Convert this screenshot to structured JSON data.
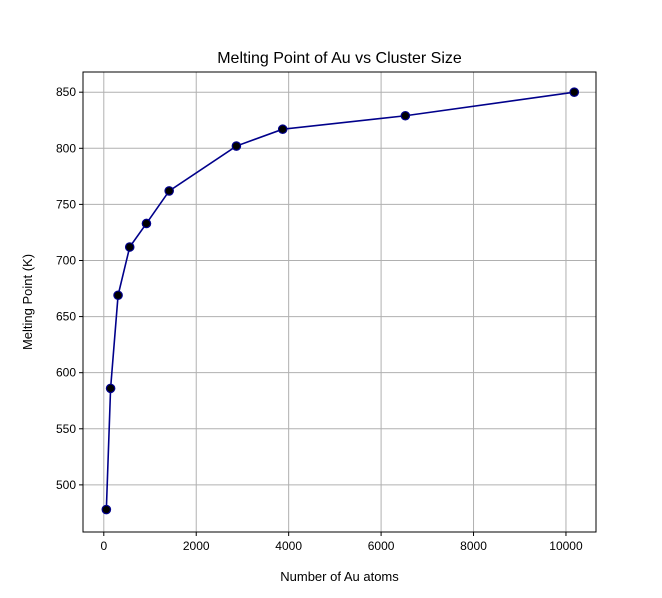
{
  "chart_data": {
    "type": "line",
    "title": "Melting Point of Au vs Cluster Size",
    "xlabel": "Number of Au atoms",
    "ylabel": "Melting Point (K)",
    "xlim": [
      -450,
      10650
    ],
    "ylim": [
      458,
      868
    ],
    "xticks": [
      0,
      2000,
      4000,
      6000,
      8000,
      10000
    ],
    "yticks": [
      500,
      550,
      600,
      650,
      700,
      750,
      800,
      850
    ],
    "grid": true,
    "series": [
      {
        "x": [
          55,
          147,
          309,
          561,
          923,
          1415,
          2869,
          3871,
          6525,
          10179
        ],
        "y": [
          478,
          586,
          669,
          712,
          733,
          762,
          802,
          817,
          829,
          850
        ],
        "line_color": "#00008b",
        "marker": "circle",
        "marker_color": "#000000"
      }
    ]
  }
}
